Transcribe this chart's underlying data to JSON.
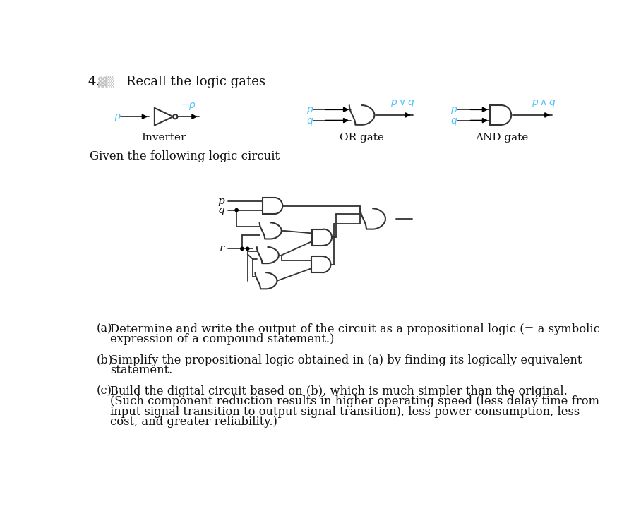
{
  "title_number": "4.",
  "title_text": "Recall the logic gates",
  "inverter_label": "Inverter",
  "or_gate_label": "OR gate",
  "and_gate_label": "AND gate",
  "given_text": "Given the following logic circuit",
  "cyan_color": "#4FC3F7",
  "line_color": "#333333",
  "bg_color": "#ffffff",
  "text_color": "#111111"
}
